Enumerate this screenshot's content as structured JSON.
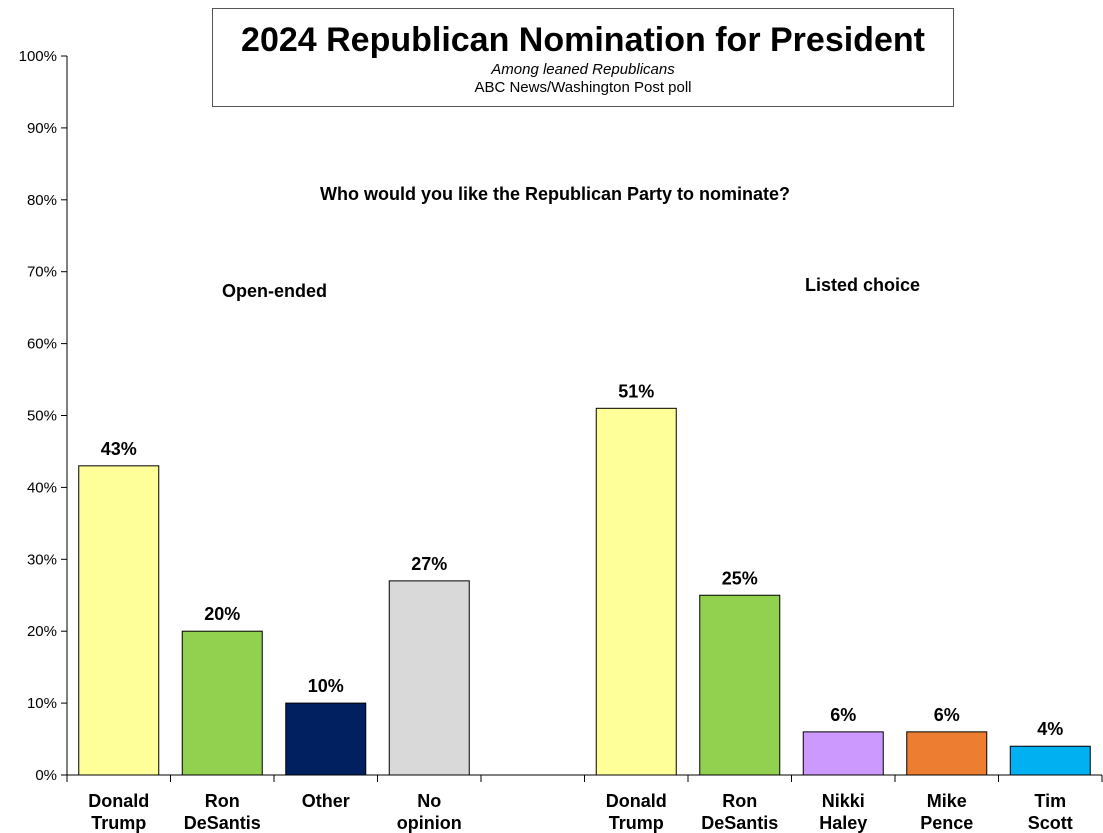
{
  "title": "2024 Republican Nomination for President",
  "subtitle_line1": "Among leaned Republicans",
  "subtitle_line2": "ABC News/Washington Post poll",
  "annotations": {
    "question": "Who would you like the Republican Party to nominate?",
    "open_ended": "Open-ended",
    "listed_choice": "Listed choice"
  },
  "chart_data": {
    "type": "bar",
    "title": "2024 Republican Nomination for President",
    "subtitle": "Among leaned Republicans / ABC News/Washington Post poll",
    "ylim": [
      0,
      100
    ],
    "y_ticks": [
      "0%",
      "10%",
      "20%",
      "30%",
      "40%",
      "50%",
      "60%",
      "70%",
      "80%",
      "90%",
      "100%"
    ],
    "grid": false,
    "legend": "none",
    "categories": [
      [
        "Donald",
        "Trump"
      ],
      [
        "Ron",
        "DeSantis"
      ],
      [
        "Other"
      ],
      [
        "No",
        "opinion"
      ],
      [],
      [
        "Donald",
        "Trump"
      ],
      [
        "Ron",
        "DeSantis"
      ],
      [
        "Nikki",
        "Haley"
      ],
      [
        "Mike",
        "Pence"
      ],
      [
        "Tim",
        "Scott"
      ]
    ],
    "values": [
      43,
      20,
      10,
      27,
      null,
      51,
      25,
      6,
      6,
      4
    ],
    "data_labels": [
      "43%",
      "20%",
      "10%",
      "27%",
      "",
      "51%",
      "25%",
      "6%",
      "6%",
      "4%"
    ],
    "colors": [
      "#FFFF99",
      "#92D050",
      "#002060",
      "#D9D9D9",
      "",
      "#FFFF99",
      "#92D050",
      "#CC99FF",
      "#ED7D31",
      "#00B0F0"
    ]
  }
}
